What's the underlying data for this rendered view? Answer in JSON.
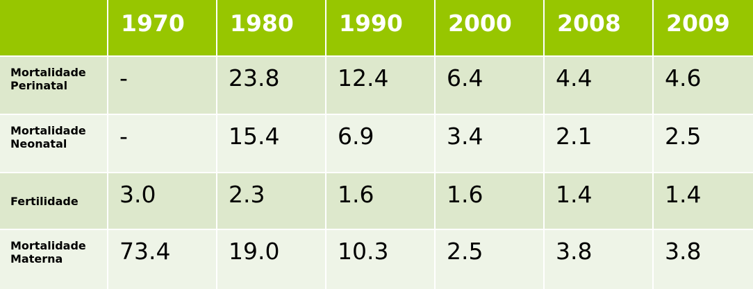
{
  "table": {
    "years": [
      "1970",
      "1980",
      "1990",
      "2000",
      "2008",
      "2009"
    ],
    "rows": [
      {
        "label_line1": "Mortalidade",
        "label_line2": "Perinatal",
        "values": [
          "-",
          "23.8",
          "12.4",
          "6.4",
          "4.4",
          "4.6"
        ]
      },
      {
        "label_line1": "Mortalidade",
        "label_line2": "Neonatal",
        "values": [
          "-",
          "15.4",
          "6.9",
          "3.4",
          "2.1",
          "2.5"
        ]
      },
      {
        "label_line1": "Fertilidade",
        "label_line2": "",
        "values": [
          "3.0",
          "2.3",
          "1.6",
          "1.6",
          "1.4",
          "1.4"
        ]
      },
      {
        "label_line1": "Mortalidade",
        "label_line2": "Materna",
        "values": [
          "73.4",
          "19.0",
          "10.3",
          "2.5",
          "3.8",
          "3.8"
        ]
      }
    ]
  },
  "colors": {
    "header_bg": "#97c600",
    "header_text": "#ffffff",
    "row_dark": "#dde8cc",
    "row_light": "#eef4e7"
  }
}
